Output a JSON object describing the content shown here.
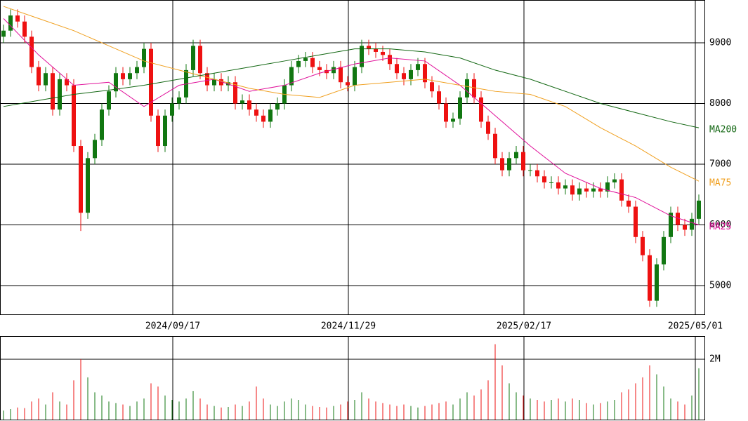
{
  "chart_data": {
    "type": "candlestick",
    "open": [
      9100,
      9200,
      9450,
      9350,
      9100,
      8600,
      8300,
      8500,
      7900,
      8400,
      8300,
      7300,
      6200,
      7100,
      7400,
      7900,
      8200,
      8500,
      8400,
      8500,
      8600,
      8900,
      7800,
      7300,
      7800,
      8000,
      8100,
      8550,
      8950,
      8500,
      8300,
      8400,
      8300,
      8350,
      8000,
      8050,
      7900,
      7800,
      7700,
      7900,
      8000,
      8300,
      8600,
      8700,
      8750,
      8600,
      8550,
      8500,
      8600,
      8350,
      8300,
      8600,
      8950,
      8900,
      8850,
      8800,
      8650,
      8500,
      8400,
      8550,
      8650,
      8350,
      8200,
      8000,
      7700,
      7750,
      8100,
      8400,
      8100,
      7700,
      7500,
      7100,
      6900,
      7100,
      7200,
      6900,
      6900,
      6800,
      6700,
      6700,
      6600,
      6650,
      6500,
      6600,
      6550,
      6600,
      6550,
      6700,
      6750,
      6400,
      6300,
      5800,
      5500,
      4750,
      5350,
      5800,
      6200,
      6000,
      5920,
      6100
    ],
    "high": [
      9300,
      9550,
      9550,
      9450,
      9200,
      8700,
      8600,
      8600,
      8500,
      8500,
      8400,
      7400,
      7200,
      7500,
      8000,
      8300,
      8600,
      8600,
      8600,
      8700,
      9000,
      9000,
      7900,
      7900,
      8100,
      8200,
      8650,
      9050,
      9050,
      8600,
      8500,
      8500,
      8450,
      8450,
      8150,
      8150,
      8000,
      7900,
      8000,
      8100,
      8400,
      8700,
      8800,
      8850,
      8850,
      8700,
      8650,
      8700,
      8700,
      8450,
      8700,
      9050,
      9050,
      9000,
      8950,
      8900,
      8750,
      8600,
      8650,
      8750,
      8750,
      8450,
      8300,
      8100,
      7850,
      8200,
      8500,
      8500,
      8200,
      7800,
      7600,
      7200,
      7200,
      7300,
      7300,
      7000,
      7000,
      6900,
      6800,
      6800,
      6750,
      6750,
      6700,
      6700,
      6700,
      6700,
      6800,
      6850,
      6850,
      6500,
      6400,
      5900,
      5600,
      5450,
      5900,
      6300,
      6300,
      6100,
      6200,
      6500
    ],
    "low": [
      9000,
      9100,
      9250,
      9000,
      8500,
      8200,
      8200,
      7800,
      7800,
      8200,
      7200,
      5900,
      6100,
      7000,
      7300,
      7800,
      8100,
      8300,
      8300,
      8400,
      8500,
      7700,
      7200,
      7200,
      7700,
      7900,
      8000,
      8450,
      8400,
      8200,
      8200,
      8200,
      8200,
      7900,
      7900,
      7800,
      7700,
      7600,
      7600,
      7800,
      7900,
      8200,
      8500,
      8600,
      8500,
      8450,
      8400,
      8400,
      8250,
      8200,
      8200,
      8500,
      8800,
      8750,
      8700,
      8550,
      8400,
      8300,
      8300,
      8450,
      8250,
      8100,
      7900,
      7600,
      7600,
      7650,
      8000,
      8000,
      7600,
      7400,
      7000,
      6800,
      6800,
      7000,
      6800,
      6800,
      6700,
      6600,
      6600,
      6500,
      6500,
      6400,
      6400,
      6450,
      6450,
      6450,
      6450,
      6600,
      6300,
      6200,
      5700,
      5400,
      4650,
      4650,
      5250,
      5700,
      5900,
      5820,
      5820,
      6000
    ],
    "close": [
      9200,
      9450,
      9350,
      9100,
      8600,
      8300,
      8500,
      7900,
      8400,
      8300,
      7300,
      6200,
      7100,
      7400,
      7900,
      8200,
      8500,
      8400,
      8500,
      8600,
      8900,
      7800,
      7300,
      7800,
      8000,
      8100,
      8550,
      8950,
      8500,
      8300,
      8400,
      8300,
      8350,
      8000,
      8050,
      7900,
      7800,
      7700,
      7900,
      8000,
      8300,
      8600,
      8700,
      8750,
      8600,
      8550,
      8500,
      8600,
      8350,
      8300,
      8600,
      8950,
      8900,
      8850,
      8800,
      8650,
      8500,
      8400,
      8550,
      8650,
      8350,
      8200,
      8000,
      7700,
      7750,
      8100,
      8400,
      8100,
      7700,
      7500,
      7100,
      6900,
      7100,
      7200,
      6900,
      6900,
      6800,
      6700,
      6700,
      6600,
      6650,
      6500,
      6600,
      6550,
      6600,
      6550,
      6700,
      6750,
      6400,
      6300,
      5800,
      5500,
      4750,
      5350,
      5800,
      6200,
      6000,
      5920,
      6100,
      6400
    ],
    "up_color": "#117711",
    "down_color": "#ee1111",
    "ylim": [
      4526,
      9705
    ],
    "yticks": [
      5000,
      6000,
      7000,
      8000,
      9000
    ],
    "xlim": [
      0,
      100.3
    ],
    "xticks": [
      {
        "value": 24.6,
        "label": "2024/09/17"
      },
      {
        "value": 49.6,
        "label": "2024/11/29"
      },
      {
        "value": 74.6,
        "label": "2025/02/17"
      },
      {
        "value": 99.0,
        "label": "2025/05/01"
      }
    ],
    "grid": true,
    "series": [
      {
        "name": "MA25",
        "color": "#e0109a",
        "x": [
          0,
          5,
          10,
          15,
          20,
          25,
          30,
          35,
          40,
          45,
          50,
          55,
          60,
          65,
          70,
          75,
          80,
          85,
          90,
          95,
          99
        ],
        "values": [
          9400,
          8800,
          8300,
          8350,
          7950,
          8300,
          8400,
          8200,
          8300,
          8500,
          8650,
          8750,
          8700,
          8300,
          7800,
          7300,
          6850,
          6600,
          6450,
          6150,
          6000
        ]
      },
      {
        "name": "MA75",
        "color": "#f0a020",
        "x": [
          0,
          5,
          10,
          15,
          20,
          25,
          30,
          35,
          40,
          45,
          50,
          55,
          60,
          65,
          70,
          75,
          80,
          85,
          90,
          95,
          99
        ],
        "values": [
          9600,
          9400,
          9200,
          8950,
          8700,
          8550,
          8400,
          8250,
          8150,
          8100,
          8300,
          8350,
          8400,
          8300,
          8200,
          8150,
          7950,
          7600,
          7300,
          6950,
          6720
        ]
      },
      {
        "name": "MA200",
        "color": "#116611",
        "x": [
          0,
          5,
          10,
          15,
          20,
          25,
          30,
          35,
          40,
          45,
          50,
          55,
          60,
          65,
          70,
          75,
          80,
          85,
          90,
          95,
          99
        ],
        "values": [
          7950,
          8050,
          8150,
          8220,
          8300,
          8400,
          8500,
          8600,
          8700,
          8800,
          8900,
          8900,
          8850,
          8750,
          8550,
          8400,
          8200,
          8000,
          7850,
          7700,
          7600
        ]
      }
    ],
    "volume": {
      "values": [
        300000,
        350000,
        400000,
        380000,
        600000,
        700000,
        500000,
        900000,
        600000,
        500000,
        1300000,
        2000000,
        1400000,
        900000,
        800000,
        600000,
        550000,
        500000,
        450000,
        600000,
        700000,
        1200000,
        1100000,
        800000,
        650000,
        600000,
        700000,
        950000,
        700000,
        500000,
        450000,
        400000,
        420000,
        500000,
        450000,
        600000,
        1100000,
        700000,
        500000,
        450000,
        600000,
        700000,
        650000,
        500000,
        450000,
        420000,
        400000,
        450000,
        500000,
        600000,
        650000,
        900000,
        700000,
        600000,
        550000,
        500000,
        450000,
        500000,
        450000,
        400000,
        450000,
        500000,
        550000,
        600000,
        500000,
        700000,
        900000,
        800000,
        1000000,
        1300000,
        2500000,
        1800000,
        1200000,
        900000,
        800000,
        700000,
        650000,
        600000,
        650000,
        700000,
        600000,
        700000,
        650000,
        550000,
        500000,
        550000,
        600000,
        650000,
        900000,
        1000000,
        1200000,
        1400000,
        1800000,
        1500000,
        1100000,
        700000,
        600000,
        500000,
        800000,
        1700000
      ],
      "ylim": [
        0,
        2744000
      ],
      "yticks": [
        {
          "value": 2000000,
          "label": "2M"
        }
      ]
    }
  }
}
